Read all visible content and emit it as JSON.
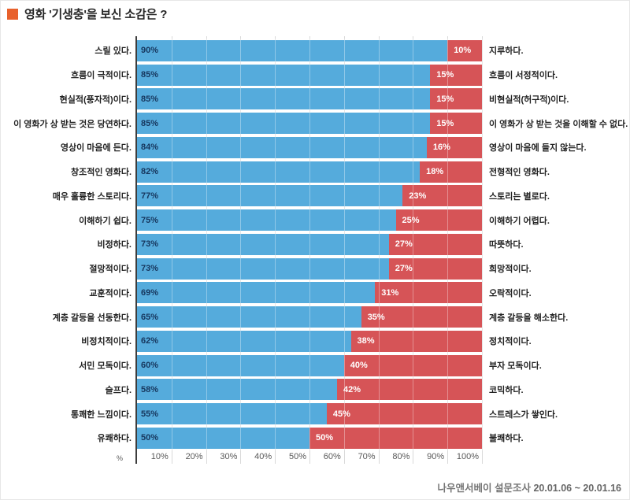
{
  "title": {
    "text": "영화 '기생충'을 보신 소감은 ?"
  },
  "axis": {
    "unit": "%",
    "ticks": [
      "10%",
      "20%",
      "30%",
      "40%",
      "50%",
      "60%",
      "70%",
      "80%",
      "90%",
      "100%"
    ]
  },
  "colors": {
    "title_bullet": "#e8612c",
    "positive_bar": "#55abdc",
    "negative_bar": "#d65457",
    "positive_value_text": "#17375e",
    "negative_value_text": "#ffffff",
    "gridline": "#d9d9d9",
    "axis_line": "#3d3d3d",
    "tick_text": "#595959",
    "label_text": "#222222",
    "footer_text": "#757575"
  },
  "footer": {
    "source": "나우앤서베이 설문조사",
    "period": "20.01.06 ~ 20.01.16"
  },
  "chart_data": {
    "type": "bar",
    "subtype": "horizontal-diverging-stacked",
    "title": "영화 '기생충'을 보신 소감은 ?",
    "xlim": [
      0,
      100
    ],
    "x_tick_values": [
      10,
      20,
      30,
      40,
      50,
      60,
      70,
      80,
      90,
      100
    ],
    "grid": true,
    "legend_position": "none",
    "value_suffix": "%",
    "rows": [
      {
        "left_label": "스릴 있다.",
        "positive": 90,
        "negative": 10,
        "right_label": "지루하다."
      },
      {
        "left_label": "흐름이 극적이다.",
        "positive": 85,
        "negative": 15,
        "right_label": "흐름이 서정적이다."
      },
      {
        "left_label": "현실적(풍자적)이다.",
        "positive": 85,
        "negative": 15,
        "right_label": "비현실적(허구적)이다."
      },
      {
        "left_label": "이 영화가 상 받는 것은 당연하다.",
        "positive": 85,
        "negative": 15,
        "right_label": "이 영화가 상 받는 것을 이해할 수 없다."
      },
      {
        "left_label": "영상이 마음에 든다.",
        "positive": 84,
        "negative": 16,
        "right_label": "영상이 마음에 들지 않는다."
      },
      {
        "left_label": "창조적인 영화다.",
        "positive": 82,
        "negative": 18,
        "right_label": "전형적인 영화다."
      },
      {
        "left_label": "매우 훌륭한 스토리다.",
        "positive": 77,
        "negative": 23,
        "right_label": "스토리는 별로다."
      },
      {
        "left_label": "이해하기 쉽다.",
        "positive": 75,
        "negative": 25,
        "right_label": "이해하기 어렵다."
      },
      {
        "left_label": "비정하다.",
        "positive": 73,
        "negative": 27,
        "right_label": "따뜻하다."
      },
      {
        "left_label": "절망적이다.",
        "positive": 73,
        "negative": 27,
        "right_label": "희망적이다."
      },
      {
        "left_label": "교훈적이다.",
        "positive": 69,
        "negative": 31,
        "right_label": "오락적이다."
      },
      {
        "left_label": "계층 갈등을 선동한다.",
        "positive": 65,
        "negative": 35,
        "right_label": "계층 갈등을 해소한다."
      },
      {
        "left_label": "비정치적이다.",
        "positive": 62,
        "negative": 38,
        "right_label": "정치적이다."
      },
      {
        "left_label": "서민 모독이다.",
        "positive": 60,
        "negative": 40,
        "right_label": "부자 모독이다."
      },
      {
        "left_label": "슬프다.",
        "positive": 58,
        "negative": 42,
        "right_label": "코믹하다."
      },
      {
        "left_label": "통쾌한 느낌이다.",
        "positive": 55,
        "negative": 45,
        "right_label": "스트레스가 쌓인다."
      },
      {
        "left_label": "유쾌하다.",
        "positive": 50,
        "negative": 50,
        "right_label": "불쾌하다."
      }
    ]
  }
}
